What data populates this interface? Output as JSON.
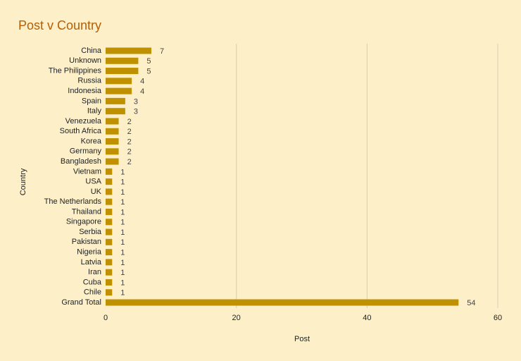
{
  "chart_data": {
    "type": "bar",
    "orientation": "horizontal",
    "title": "Post v Country",
    "x_label": "Post",
    "y_label": "Country",
    "categories": [
      "China",
      "Unknown",
      "The Philippines",
      "Russia",
      "Indonesia",
      "Spain",
      "Italy",
      "Venezuela",
      "South Africa",
      "Korea",
      "Germany",
      "Bangladesh",
      "Vietnam",
      "USA",
      "UK",
      "The Netherlands",
      "Thailand",
      "Singapore",
      "Serbia",
      "Pakistan",
      "Nigeria",
      "Latvia",
      "Iran",
      "Cuba",
      "Chile",
      "Grand Total"
    ],
    "values": [
      7,
      5,
      5,
      4,
      4,
      3,
      3,
      2,
      2,
      2,
      2,
      2,
      1,
      1,
      1,
      1,
      1,
      1,
      1,
      1,
      1,
      1,
      1,
      1,
      1,
      54
    ],
    "color": "#bf9000",
    "xlim": [
      0,
      60
    ],
    "xticks": [
      0,
      20,
      40,
      60
    ],
    "grid": true
  }
}
